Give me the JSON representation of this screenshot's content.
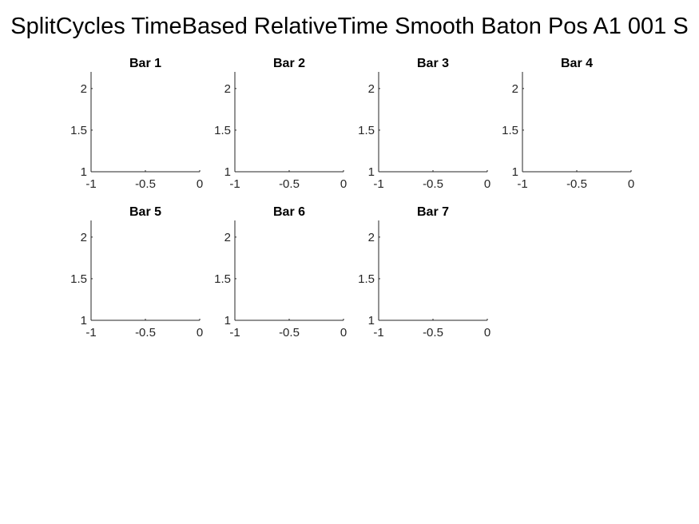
{
  "figure": {
    "suptitle": "SplitCycles TimeBased RelativeTime Smooth Baton Pos A1 001 S"
  },
  "colors": {
    "background": "#ffffff",
    "axis": "#262626",
    "text": "#000000"
  },
  "chart_data": [
    {
      "type": "line",
      "title": "Bar 1",
      "xlim": [
        -1,
        0
      ],
      "ylim": [
        1,
        2.2
      ],
      "xticks": [
        -1,
        -0.5,
        0
      ],
      "xtick_labels": [
        "-1",
        "-0.5",
        "0"
      ],
      "yticks": [
        1,
        1.5,
        2
      ],
      "ytick_labels": [
        "1",
        "1.5",
        "2"
      ],
      "series": [],
      "xlabel": "",
      "ylabel": "",
      "grid": false
    },
    {
      "type": "line",
      "title": "Bar 2",
      "xlim": [
        -1,
        0
      ],
      "ylim": [
        1,
        2.2
      ],
      "xticks": [
        -1,
        -0.5,
        0
      ],
      "xtick_labels": [
        "-1",
        "-0.5",
        "0"
      ],
      "yticks": [
        1,
        1.5,
        2
      ],
      "ytick_labels": [
        "1",
        "1.5",
        "2"
      ],
      "series": [],
      "xlabel": "",
      "ylabel": "",
      "grid": false
    },
    {
      "type": "line",
      "title": "Bar 3",
      "xlim": [
        -1,
        0
      ],
      "ylim": [
        1,
        2.2
      ],
      "xticks": [
        -1,
        -0.5,
        0
      ],
      "xtick_labels": [
        "-1",
        "-0.5",
        "0"
      ],
      "yticks": [
        1,
        1.5,
        2
      ],
      "ytick_labels": [
        "1",
        "1.5",
        "2"
      ],
      "series": [],
      "xlabel": "",
      "ylabel": "",
      "grid": false
    },
    {
      "type": "line",
      "title": "Bar 4",
      "xlim": [
        -1,
        0
      ],
      "ylim": [
        1,
        2.2
      ],
      "xticks": [
        -1,
        -0.5,
        0
      ],
      "xtick_labels": [
        "-1",
        "-0.5",
        "0"
      ],
      "yticks": [
        1,
        1.5,
        2
      ],
      "ytick_labels": [
        "1",
        "1.5",
        "2"
      ],
      "series": [],
      "xlabel": "",
      "ylabel": "",
      "grid": false
    },
    {
      "type": "line",
      "title": "Bar 5",
      "xlim": [
        -1,
        0
      ],
      "ylim": [
        1,
        2.2
      ],
      "xticks": [
        -1,
        -0.5,
        0
      ],
      "xtick_labels": [
        "-1",
        "-0.5",
        "0"
      ],
      "yticks": [
        1,
        1.5,
        2
      ],
      "ytick_labels": [
        "1",
        "1.5",
        "2"
      ],
      "series": [],
      "xlabel": "",
      "ylabel": "",
      "grid": false
    },
    {
      "type": "line",
      "title": "Bar 6",
      "xlim": [
        -1,
        0
      ],
      "ylim": [
        1,
        2.2
      ],
      "xticks": [
        -1,
        -0.5,
        0
      ],
      "xtick_labels": [
        "-1",
        "-0.5",
        "0"
      ],
      "yticks": [
        1,
        1.5,
        2
      ],
      "ytick_labels": [
        "1",
        "1.5",
        "2"
      ],
      "series": [],
      "xlabel": "",
      "ylabel": "",
      "grid": false
    },
    {
      "type": "line",
      "title": "Bar 7",
      "xlim": [
        -1,
        0
      ],
      "ylim": [
        1,
        2.2
      ],
      "xticks": [
        -1,
        -0.5,
        0
      ],
      "xtick_labels": [
        "-1",
        "-0.5",
        "0"
      ],
      "yticks": [
        1,
        1.5,
        2
      ],
      "ytick_labels": [
        "1",
        "1.5",
        "2"
      ],
      "series": [],
      "xlabel": "",
      "ylabel": "",
      "grid": false
    }
  ]
}
